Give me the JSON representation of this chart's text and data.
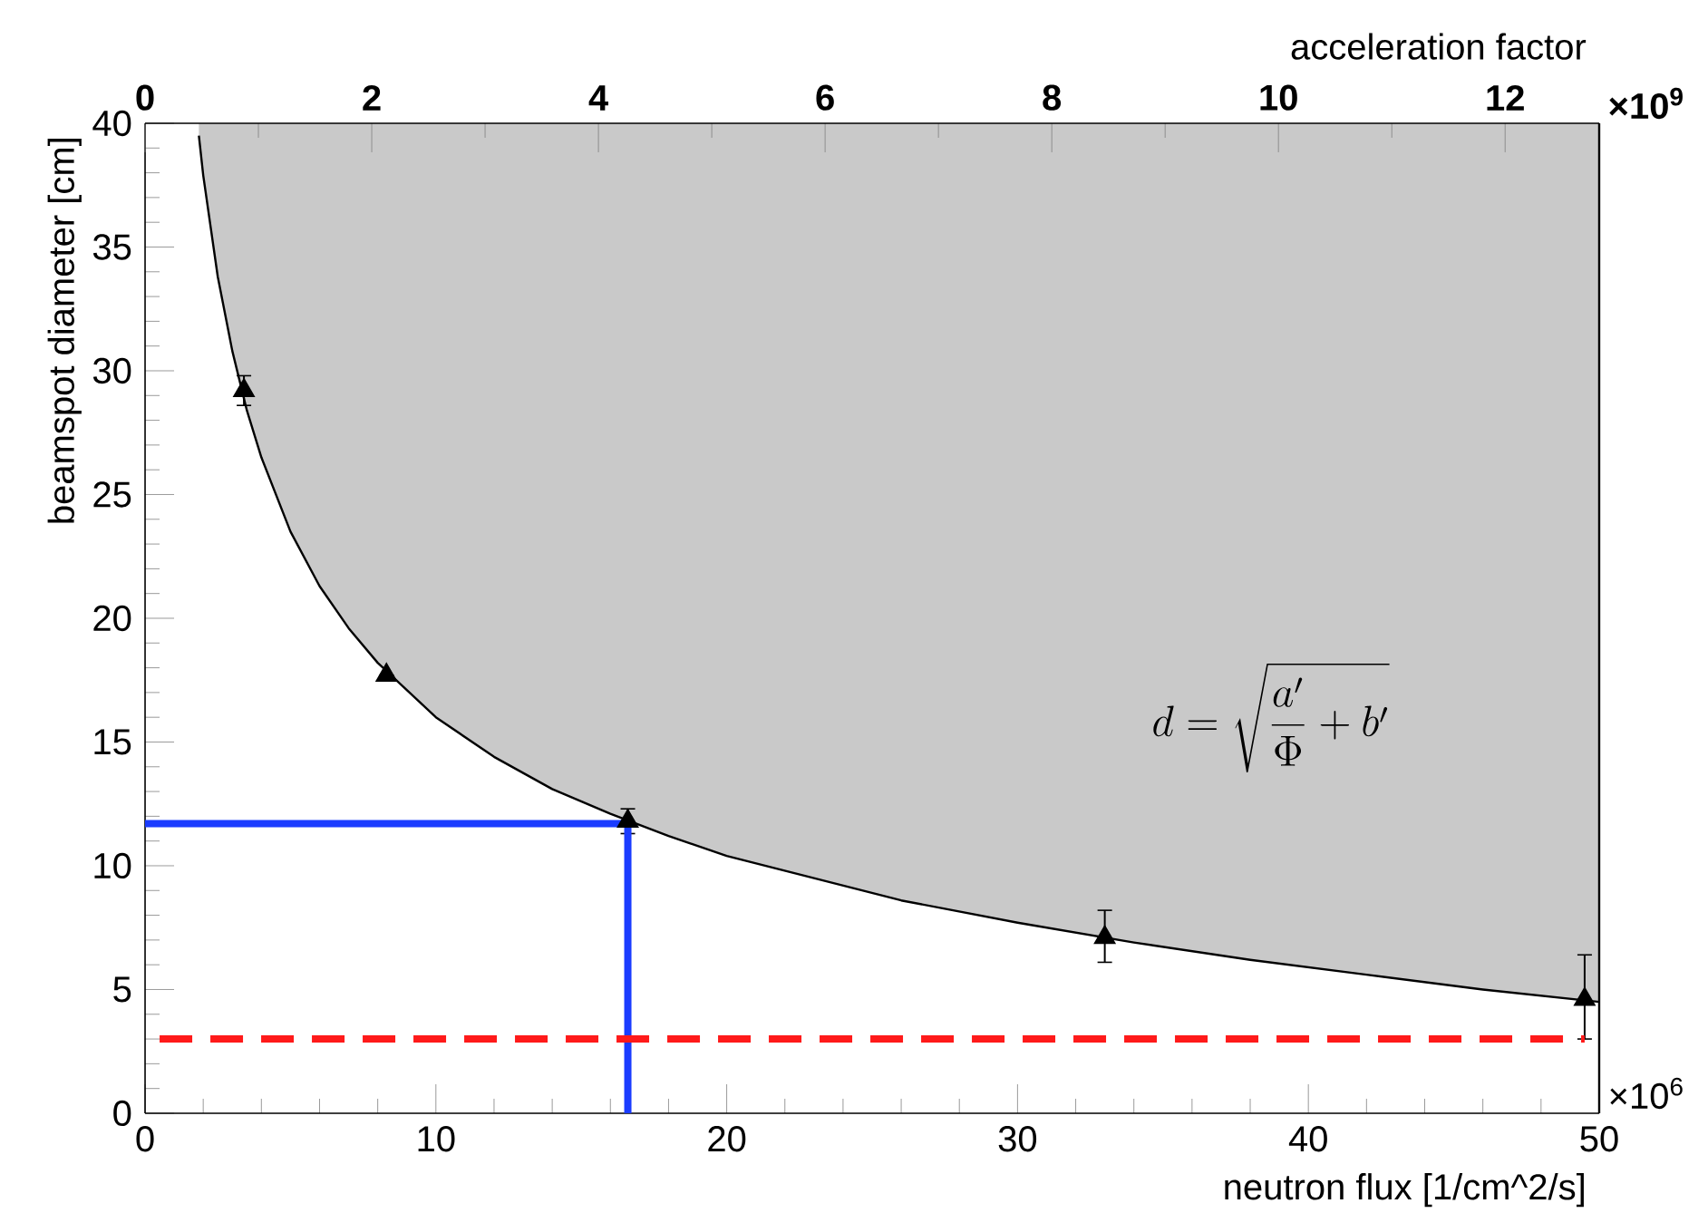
{
  "chart_data": {
    "type": "line",
    "xlabel": "neutron flux [1/cm^2/s]",
    "ylabel": "beamspot diameter [cm]",
    "x2label": "acceleration factor",
    "xlim": [
      0,
      50
    ],
    "xticks": [
      0,
      10,
      20,
      30,
      40,
      50
    ],
    "ylim": [
      0,
      40
    ],
    "yticks": [
      0,
      5,
      10,
      15,
      20,
      25,
      30,
      35,
      40
    ],
    "x2lim": [
      0,
      12.83
    ],
    "x2ticks": [
      0,
      2,
      4,
      6,
      8,
      10,
      12
    ],
    "marker": "none",
    "series": [
      {
        "color": "#000000",
        "x": [
          1.85,
          2,
          2.5,
          3,
          3.5,
          4,
          5,
          6,
          7,
          8,
          10,
          12,
          14,
          16,
          18,
          20,
          23,
          26,
          30,
          34,
          38,
          42,
          46,
          50
        ],
        "values": [
          39.5,
          37.9,
          33.8,
          30.8,
          28.4,
          26.5,
          23.5,
          21.3,
          19.6,
          18.2,
          16.0,
          14.4,
          13.1,
          12.1,
          11.2,
          10.4,
          9.5,
          8.6,
          7.7,
          6.9,
          6.2,
          5.6,
          5.0,
          4.5
        ],
        "lower": [
          39.5,
          37.9,
          33.8,
          30.8,
          28.4,
          26.5,
          23.5,
          21.3,
          19.6,
          18.2,
          16.0,
          14.4,
          13.1,
          12.1,
          11.2,
          10.4,
          9.5,
          8.6,
          7.7,
          6.9,
          6.2,
          5.6,
          5.0,
          4.5
        ],
        "upper": [
          40,
          40,
          40,
          40,
          40,
          40,
          40,
          40,
          40,
          40,
          40,
          40,
          40,
          40,
          40,
          40,
          40,
          40,
          40,
          40,
          40,
          40,
          40,
          40
        ]
      },
      {
        "type": "scatter",
        "marker": "triangle",
        "color": "#000000",
        "x": [
          3.4,
          8.3,
          16.6,
          33.0,
          49.5
        ],
        "values": [
          29.2,
          17.7,
          11.8,
          7.1,
          4.6
        ],
        "errors": [
          0.6,
          null,
          0.5,
          [
            6.1,
            8.2
          ],
          [
            3.0,
            6.4
          ]
        ]
      },
      {
        "color": "#1a3cff",
        "x": [
          0,
          16.6,
          16.6
        ],
        "values": [
          11.7,
          11.7,
          0
        ]
      },
      {
        "color": "#ff1a1a",
        "line_style": "dashed",
        "x": [
          0.5,
          49.5
        ],
        "values": [
          3.0,
          3.0
        ]
      }
    ],
    "annotations": [
      "×10$^{6}$",
      "×10$^{9}$",
      "d = \\sqrt{\\frac{a'}{\\Phi} + b'}"
    ]
  }
}
